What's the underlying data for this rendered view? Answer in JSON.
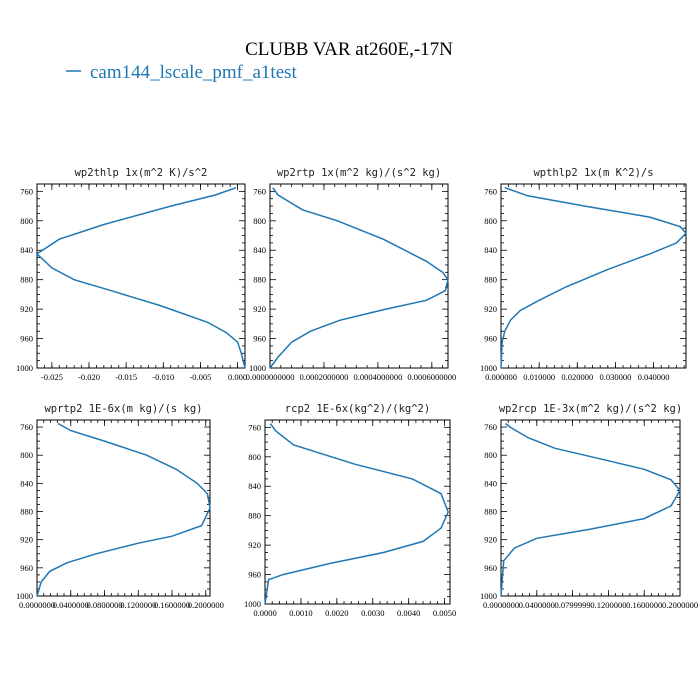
{
  "title": "CLUBB VAR at260E,-17N",
  "legend": {
    "label": "cam144_lscale_pmf_a1test",
    "color": "#1f77b4"
  },
  "chart_data": [
    {
      "type": "line",
      "title": "wp2thlp  1x(m^2 K)/s^2",
      "xlim": [
        -0.027,
        0.001
      ],
      "ylim": [
        1000,
        750
      ],
      "xticks": [
        "-0.025",
        "-0.020",
        "-0.015",
        "-0.010",
        "-0.005",
        "0.000"
      ],
      "xtick_values": [
        -0.025,
        -0.02,
        -0.015,
        -0.01,
        -0.005,
        0.0
      ],
      "yticks": [
        "760",
        "800",
        "840",
        "880",
        "920",
        "960",
        "1000"
      ],
      "ytick_values": [
        760,
        800,
        840,
        880,
        920,
        960,
        1000
      ],
      "series": [
        {
          "color": "#1f77b4",
          "x": [
            -0.0002,
            -0.003,
            -0.009,
            -0.018,
            -0.024,
            -0.027,
            -0.025,
            -0.022,
            -0.017,
            -0.0105,
            -0.004,
            -0.0015,
            0.0,
            0.0005,
            0.001
          ],
          "y": [
            755,
            765,
            780,
            805,
            825,
            845,
            864,
            880,
            895,
            915,
            938,
            952,
            965,
            980,
            1000
          ]
        }
      ]
    },
    {
      "type": "line",
      "title": "wp2rtp  1x(m^2 kg)/(s^2 kg)",
      "xlim": [
        0.0,
        0.00066
      ],
      "ylim": [
        1000,
        750
      ],
      "xticks": [
        "0.0000000000",
        "0.0002000000",
        "0.0004000000",
        "0.0006000000"
      ],
      "xtick_values": [
        0.0,
        0.0002,
        0.0004,
        0.0006
      ],
      "yticks": [
        "760",
        "800",
        "840",
        "880",
        "920",
        "960",
        "1000"
      ],
      "ytick_values": [
        760,
        800,
        840,
        880,
        920,
        960,
        1000
      ],
      "series": [
        {
          "color": "#1f77b4",
          "x": [
            1e-05,
            3e-05,
            0.00012,
            0.00025,
            0.00042,
            0.00058,
            0.00064,
            0.00066,
            0.00065,
            0.00058,
            0.00043,
            0.00026,
            0.00015,
            8e-05,
            3e-05,
            0.0
          ],
          "y": [
            755,
            765,
            785,
            800,
            825,
            855,
            870,
            880,
            895,
            908,
            920,
            935,
            950,
            965,
            985,
            1000
          ]
        }
      ]
    },
    {
      "type": "line",
      "title": "wpthlp2  1x(m K^2)/s",
      "xlim": [
        0.0,
        0.0485
      ],
      "ylim": [
        1000,
        750
      ],
      "xticks": [
        "0.000000",
        "0.010000",
        "0.020000",
        "0.030000",
        "0.040000"
      ],
      "xtick_values": [
        0.0,
        0.01,
        0.02,
        0.03,
        0.04
      ],
      "yticks": [
        "760",
        "800",
        "840",
        "880",
        "920",
        "960",
        "1000"
      ],
      "ytick_values": [
        760,
        800,
        840,
        880,
        920,
        960,
        1000
      ],
      "series": [
        {
          "color": "#1f77b4",
          "x": [
            0.001,
            0.007,
            0.022,
            0.039,
            0.047,
            0.0485,
            0.046,
            0.039,
            0.028,
            0.017,
            0.01,
            0.005,
            0.0025,
            0.001,
            0.0003,
            0.0
          ],
          "y": [
            755,
            766,
            780,
            795,
            808,
            817,
            830,
            845,
            866,
            890,
            908,
            922,
            935,
            950,
            965,
            1000
          ]
        }
      ]
    },
    {
      "type": "line",
      "title": "wprtp2  1E-6x(m kg)/(s kg)",
      "xlim": [
        0.0,
        0.205
      ],
      "ylim": [
        1000,
        750
      ],
      "xticks": [
        "0.0000000",
        "0.0400000",
        "0.0800000",
        "0.1200000",
        "0.1600000",
        "0.2000000"
      ],
      "xtick_values": [
        0.0,
        0.04,
        0.08,
        0.12,
        0.16,
        0.2
      ],
      "yticks": [
        "760",
        "800",
        "840",
        "880",
        "920",
        "960",
        "1000"
      ],
      "ytick_values": [
        760,
        800,
        840,
        880,
        920,
        960,
        1000
      ],
      "series": [
        {
          "color": "#1f77b4",
          "x": [
            0.025,
            0.04,
            0.08,
            0.13,
            0.165,
            0.19,
            0.202,
            0.205,
            0.195,
            0.16,
            0.12,
            0.07,
            0.035,
            0.015,
            0.005,
            0.0
          ],
          "y": [
            755,
            765,
            780,
            800,
            820,
            840,
            855,
            875,
            900,
            915,
            925,
            940,
            953,
            965,
            980,
            1000
          ]
        }
      ]
    },
    {
      "type": "line",
      "title": "rcp2  1E-6x(kg^2)/(kg^2)",
      "xlim": [
        0.0,
        0.00515
      ],
      "ylim": [
        1000,
        750
      ],
      "xticks": [
        "0.0000",
        "0.0010",
        "0.0020",
        "0.0030",
        "0.0040",
        "0.0050"
      ],
      "xtick_values": [
        0.0,
        0.001,
        0.002,
        0.003,
        0.004,
        0.005
      ],
      "yticks": [
        "760",
        "800",
        "840",
        "880",
        "920",
        "960",
        "1000"
      ],
      "ytick_values": [
        760,
        800,
        840,
        880,
        920,
        960,
        1000
      ],
      "series": [
        {
          "color": "#1f77b4",
          "x": [
            0.00015,
            0.0003,
            0.0008,
            0.0025,
            0.0041,
            0.0049,
            0.0051,
            0.0049,
            0.0044,
            0.0033,
            0.0018,
            0.0005,
            0.0001,
            0.0
          ],
          "y": [
            755,
            765,
            784,
            810,
            830,
            850,
            875,
            897,
            915,
            930,
            945,
            960,
            967,
            1000
          ]
        }
      ]
    },
    {
      "type": "line",
      "title": "wp2rcp  1E-3x(m^2 kg)/(s^2 kg)",
      "xlim": [
        0.0,
        0.2
      ],
      "ylim": [
        1000,
        750
      ],
      "xticks": [
        "0.0000000",
        "0.0400000",
        "0.0799999",
        "0.1200000",
        "0.1600000",
        "0.2000000"
      ],
      "xtick_values": [
        0.0,
        0.04,
        0.08,
        0.12,
        0.16,
        0.2
      ],
      "yticks": [
        "760",
        "800",
        "840",
        "880",
        "920",
        "960",
        "1000"
      ],
      "ytick_values": [
        760,
        800,
        840,
        880,
        920,
        960,
        1000
      ],
      "series": [
        {
          "color": "#1f77b4",
          "x": [
            0.005,
            0.01,
            0.03,
            0.06,
            0.11,
            0.16,
            0.19,
            0.2,
            0.19,
            0.16,
            0.1,
            0.04,
            0.015,
            0.003,
            0.0
          ],
          "y": [
            755,
            760,
            775,
            790,
            805,
            820,
            835,
            850,
            872,
            890,
            905,
            918,
            932,
            950,
            1000
          ]
        }
      ]
    }
  ]
}
